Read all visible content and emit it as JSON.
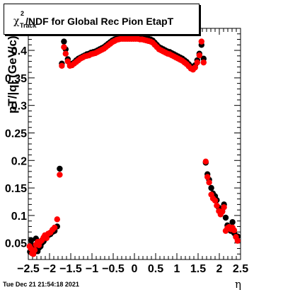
{
  "title": {
    "chi_symbol": "χ",
    "superscript": "2",
    "subscript": "Track",
    "text": "/NDF for Global Rec Pion EtapT"
  },
  "footer": {
    "timestamp": "Tue Dec 21 21:54:18 2021"
  },
  "colors": {
    "series_black": "#000000",
    "series_red": "#ff0000",
    "frame": "#000000"
  },
  "chart_data": {
    "type": "scatter",
    "xlabel": "η",
    "ylabel": "pT/|q| (GeV/c)",
    "xlim": [
      -2.5,
      2.5
    ],
    "ylim": [
      0.02,
      0.44
    ],
    "x_ticks": [
      "−2.5",
      "−2",
      "−1.5",
      "−1",
      "−0.5",
      "0",
      "0.5",
      "1",
      "1.5",
      "2",
      "2.5"
    ],
    "y_ticks": [
      "0.05",
      "0.1",
      "0.15",
      "0.2",
      "0.25",
      "0.3",
      "0.35",
      "0.4"
    ],
    "grid": false,
    "legend": "none",
    "series": [
      {
        "color": "black",
        "points": [
          [
            -2.46,
            0.034
          ],
          [
            -2.43,
            0.055
          ],
          [
            -2.41,
            0.045
          ],
          [
            -2.38,
            0.033
          ],
          [
            -2.35,
            0.04
          ],
          [
            -2.32,
            0.058
          ],
          [
            -2.28,
            0.035
          ],
          [
            -2.25,
            0.041
          ],
          [
            -2.21,
            0.044
          ],
          [
            -2.18,
            0.05
          ],
          [
            -2.14,
            0.053
          ],
          [
            -2.11,
            0.057
          ],
          [
            -2.07,
            0.06
          ],
          [
            -2.03,
            0.064
          ],
          [
            -1.98,
            0.066
          ],
          [
            -1.93,
            0.07
          ],
          [
            -1.88,
            0.072
          ],
          [
            -1.82,
            0.08
          ],
          [
            -1.76,
            0.185
          ],
          [
            -1.71,
            0.376
          ],
          [
            -1.66,
            0.416
          ],
          [
            -1.62,
            0.402
          ],
          [
            -1.57,
            0.384
          ],
          [
            -1.52,
            0.376
          ],
          [
            -1.47,
            0.375
          ],
          [
            -1.42,
            0.378
          ],
          [
            -1.37,
            0.382
          ],
          [
            -1.32,
            0.385
          ],
          [
            -1.27,
            0.387
          ],
          [
            -1.22,
            0.389
          ],
          [
            -1.17,
            0.391
          ],
          [
            -1.12,
            0.393
          ],
          [
            -1.07,
            0.394
          ],
          [
            -1.02,
            0.396
          ],
          [
            -0.97,
            0.397
          ],
          [
            -0.92,
            0.398
          ],
          [
            -0.87,
            0.4
          ],
          [
            -0.82,
            0.402
          ],
          [
            -0.77,
            0.404
          ],
          [
            -0.72,
            0.406
          ],
          [
            -0.67,
            0.409
          ],
          [
            -0.62,
            0.412
          ],
          [
            -0.57,
            0.415
          ],
          [
            -0.52,
            0.418
          ],
          [
            -0.47,
            0.42
          ],
          [
            -0.42,
            0.422
          ],
          [
            -0.37,
            0.423
          ],
          [
            -0.32,
            0.424
          ],
          [
            -0.27,
            0.424
          ],
          [
            -0.22,
            0.424
          ],
          [
            -0.17,
            0.424
          ],
          [
            -0.12,
            0.424
          ],
          [
            -0.07,
            0.424
          ],
          [
            -0.02,
            0.424
          ],
          [
            0.03,
            0.424
          ],
          [
            0.08,
            0.424
          ],
          [
            0.13,
            0.424
          ],
          [
            0.18,
            0.424
          ],
          [
            0.23,
            0.423
          ],
          [
            0.28,
            0.422
          ],
          [
            0.33,
            0.421
          ],
          [
            0.38,
            0.42
          ],
          [
            0.43,
            0.418
          ],
          [
            0.48,
            0.414
          ],
          [
            0.53,
            0.41
          ],
          [
            0.58,
            0.406
          ],
          [
            0.63,
            0.404
          ],
          [
            0.68,
            0.402
          ],
          [
            0.73,
            0.4
          ],
          [
            0.78,
            0.398
          ],
          [
            0.83,
            0.397
          ],
          [
            0.88,
            0.395
          ],
          [
            0.93,
            0.393
          ],
          [
            0.98,
            0.391
          ],
          [
            1.03,
            0.389
          ],
          [
            1.08,
            0.387
          ],
          [
            1.13,
            0.385
          ],
          [
            1.18,
            0.382
          ],
          [
            1.23,
            0.379
          ],
          [
            1.28,
            0.375
          ],
          [
            1.33,
            0.371
          ],
          [
            1.38,
            0.369
          ],
          [
            1.43,
            0.373
          ],
          [
            1.48,
            0.382
          ],
          [
            1.53,
            0.394
          ],
          [
            1.58,
            0.41
          ],
          [
            1.63,
            0.385
          ],
          [
            1.68,
            0.196
          ],
          [
            1.72,
            0.175
          ],
          [
            1.76,
            0.165
          ],
          [
            1.81,
            0.15
          ],
          [
            1.85,
            0.14
          ],
          [
            1.9,
            0.135
          ],
          [
            1.94,
            0.128
          ],
          [
            1.99,
            0.114
          ],
          [
            2.03,
            0.111
          ],
          [
            2.07,
            0.108
          ],
          [
            2.11,
            0.12
          ],
          [
            2.15,
            0.096
          ],
          [
            2.19,
            0.082
          ],
          [
            2.23,
            0.076
          ],
          [
            2.27,
            0.072
          ],
          [
            2.31,
            0.088
          ],
          [
            2.35,
            0.068
          ],
          [
            2.39,
            0.063
          ],
          [
            2.43,
            0.062
          ]
        ]
      },
      {
        "color": "red",
        "points": [
          [
            -2.47,
            0.044
          ],
          [
            -2.44,
            0.04
          ],
          [
            -2.41,
            0.031
          ],
          [
            -2.38,
            0.03
          ],
          [
            -2.35,
            0.037
          ],
          [
            -2.32,
            0.047
          ],
          [
            -2.28,
            0.052
          ],
          [
            -2.25,
            0.046
          ],
          [
            -2.21,
            0.053
          ],
          [
            -2.18,
            0.055
          ],
          [
            -2.14,
            0.06
          ],
          [
            -2.11,
            0.064
          ],
          [
            -2.07,
            0.059
          ],
          [
            -2.03,
            0.067
          ],
          [
            -1.98,
            0.069
          ],
          [
            -1.93,
            0.074
          ],
          [
            -1.88,
            0.078
          ],
          [
            -1.82,
            0.093
          ],
          [
            -1.76,
            0.174
          ],
          [
            -1.71,
            0.372
          ],
          [
            -1.66,
            0.406
          ],
          [
            -1.62,
            0.394
          ],
          [
            -1.57,
            0.38
          ],
          [
            -1.52,
            0.372
          ],
          [
            -1.47,
            0.373
          ],
          [
            -1.42,
            0.376
          ],
          [
            -1.37,
            0.379
          ],
          [
            -1.32,
            0.382
          ],
          [
            -1.27,
            0.385
          ],
          [
            -1.22,
            0.387
          ],
          [
            -1.17,
            0.389
          ],
          [
            -1.12,
            0.39
          ],
          [
            -1.07,
            0.391
          ],
          [
            -1.02,
            0.393
          ],
          [
            -0.97,
            0.394
          ],
          [
            -0.92,
            0.395
          ],
          [
            -0.87,
            0.397
          ],
          [
            -0.82,
            0.399
          ],
          [
            -0.77,
            0.401
          ],
          [
            -0.72,
            0.403
          ],
          [
            -0.67,
            0.406
          ],
          [
            -0.62,
            0.409
          ],
          [
            -0.57,
            0.412
          ],
          [
            -0.52,
            0.415
          ],
          [
            -0.47,
            0.417
          ],
          [
            -0.42,
            0.419
          ],
          [
            -0.37,
            0.42
          ],
          [
            -0.32,
            0.421
          ],
          [
            -0.27,
            0.421
          ],
          [
            -0.22,
            0.421
          ],
          [
            -0.17,
            0.421
          ],
          [
            -0.12,
            0.421
          ],
          [
            -0.07,
            0.421
          ],
          [
            -0.02,
            0.421
          ],
          [
            0.03,
            0.421
          ],
          [
            0.08,
            0.421
          ],
          [
            0.13,
            0.42
          ],
          [
            0.18,
            0.42
          ],
          [
            0.23,
            0.419
          ],
          [
            0.28,
            0.418
          ],
          [
            0.33,
            0.417
          ],
          [
            0.38,
            0.416
          ],
          [
            0.43,
            0.414
          ],
          [
            0.48,
            0.41
          ],
          [
            0.53,
            0.406
          ],
          [
            0.58,
            0.402
          ],
          [
            0.63,
            0.4
          ],
          [
            0.68,
            0.398
          ],
          [
            0.73,
            0.396
          ],
          [
            0.78,
            0.394
          ],
          [
            0.83,
            0.393
          ],
          [
            0.88,
            0.391
          ],
          [
            0.93,
            0.389
          ],
          [
            0.98,
            0.387
          ],
          [
            1.03,
            0.385
          ],
          [
            1.08,
            0.383
          ],
          [
            1.13,
            0.381
          ],
          [
            1.18,
            0.378
          ],
          [
            1.23,
            0.375
          ],
          [
            1.28,
            0.371
          ],
          [
            1.33,
            0.367
          ],
          [
            1.38,
            0.365
          ],
          [
            1.43,
            0.369
          ],
          [
            1.48,
            0.378
          ],
          [
            1.53,
            0.391
          ],
          [
            1.58,
            0.416
          ],
          [
            1.63,
            0.378
          ],
          [
            1.68,
            0.198
          ],
          [
            1.72,
            0.17
          ],
          [
            1.76,
            0.16
          ],
          [
            1.81,
            0.138
          ],
          [
            1.85,
            0.131
          ],
          [
            1.9,
            0.127
          ],
          [
            1.94,
            0.118
          ],
          [
            1.99,
            0.108
          ],
          [
            2.03,
            0.102
          ],
          [
            2.07,
            0.107
          ],
          [
            2.11,
            0.115
          ],
          [
            2.15,
            0.072
          ],
          [
            2.19,
            0.077
          ],
          [
            2.23,
            0.079
          ],
          [
            2.27,
            0.075
          ],
          [
            2.31,
            0.078
          ],
          [
            2.35,
            0.073
          ],
          [
            2.39,
            0.061
          ],
          [
            2.43,
            0.054
          ]
        ]
      }
    ]
  }
}
